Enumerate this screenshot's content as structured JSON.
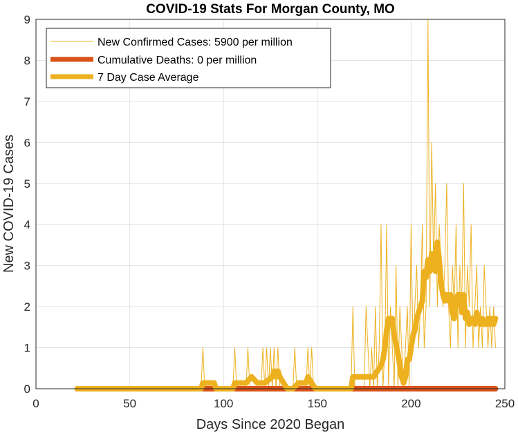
{
  "chart_data": {
    "type": "line",
    "title": "COVID-19 Stats For Morgan County, MO",
    "xlabel": "Days Since 2020 Began",
    "ylabel": "New COVID-19 Cases",
    "xlim": [
      0,
      250
    ],
    "ylim": [
      0,
      9
    ],
    "xticks": [
      0,
      50,
      100,
      150,
      200,
      250
    ],
    "yticks": [
      0,
      1,
      2,
      3,
      4,
      5,
      6,
      7,
      8,
      9
    ],
    "grid": true,
    "legend_position": "top-left",
    "series": [
      {
        "name": "New Confirmed Cases: 5900 per million",
        "color": "#EDB120",
        "style": "thin",
        "x": [
          22,
          88,
          89,
          90,
          91,
          92,
          100,
          105,
          106,
          107,
          112,
          113,
          114,
          120,
          121,
          122,
          123,
          124,
          125,
          126,
          127,
          128,
          129,
          130,
          131,
          137,
          138,
          139,
          144,
          145,
          146,
          147,
          148,
          150,
          168,
          169,
          170,
          175,
          176,
          178,
          179,
          180,
          181,
          182,
          183,
          184,
          185,
          186,
          187,
          188,
          189,
          190,
          191,
          192,
          193,
          194,
          195,
          196,
          197,
          198,
          199,
          200,
          201,
          202,
          203,
          204,
          205,
          206,
          207,
          208,
          209,
          210,
          211,
          212,
          213,
          214,
          215,
          216,
          217,
          218,
          219,
          220,
          221,
          222,
          223,
          224,
          225,
          226,
          227,
          228,
          229,
          230,
          231,
          232,
          233,
          234,
          235,
          236,
          237,
          238,
          239,
          240,
          241,
          242,
          243,
          244,
          245
        ],
        "y": [
          0,
          0,
          1,
          0,
          0,
          0,
          0,
          0,
          1,
          0,
          0,
          1,
          0,
          0,
          1,
          0,
          1,
          0,
          1,
          0,
          1,
          0,
          1,
          0,
          0,
          0,
          1,
          0,
          0,
          1,
          0,
          1,
          0,
          0,
          0,
          2,
          0,
          0,
          2,
          0,
          1,
          0,
          2,
          0,
          1,
          4,
          0,
          1,
          4,
          0,
          2,
          1,
          0,
          3,
          0,
          2,
          1,
          0,
          1,
          2,
          0,
          4,
          1,
          2,
          3,
          1,
          2,
          4,
          1,
          2,
          9,
          2,
          6,
          3,
          5,
          2,
          4,
          3,
          2,
          3,
          5,
          2,
          1,
          3,
          2,
          4,
          1,
          3,
          2,
          5,
          1,
          3,
          2,
          4,
          1,
          2,
          3,
          1,
          2,
          1,
          3,
          2,
          1,
          2,
          1,
          2,
          1
        ]
      },
      {
        "name": "Cumulative Deaths: 0 per million",
        "color": "#D95319",
        "style": "thick",
        "x": [
          22,
          245
        ],
        "y": [
          0,
          0
        ]
      },
      {
        "name": "7 Day Case Average",
        "color": "#EDB120",
        "style": "thick",
        "x": [
          22,
          88,
          89,
          90,
          92,
          95,
          96,
          98,
          105,
          106,
          108,
          112,
          115,
          118,
          120,
          122,
          126,
          127,
          128,
          129,
          130,
          132,
          134,
          137,
          140,
          144,
          145,
          147,
          149,
          151,
          153,
          168,
          169,
          175,
          178,
          180,
          182,
          184,
          185,
          186,
          187,
          188,
          189,
          190,
          191,
          193,
          194,
          195,
          196,
          197,
          198,
          199,
          200,
          201,
          202,
          203,
          204,
          205,
          206,
          207,
          208,
          209,
          210,
          211,
          212,
          213,
          214,
          215,
          216,
          217,
          218,
          219,
          220,
          221,
          222,
          223,
          224,
          225,
          226,
          227,
          228,
          229,
          230,
          231,
          232,
          233,
          234,
          235,
          236,
          237,
          238,
          239,
          240,
          241,
          242,
          243,
          244,
          245
        ],
        "y": [
          0,
          0,
          0.14,
          0.14,
          0.14,
          0.14,
          0,
          0,
          0,
          0.14,
          0.14,
          0.14,
          0.29,
          0.14,
          0.14,
          0.14,
          0.29,
          0.43,
          0.29,
          0.43,
          0.29,
          0.14,
          0,
          0,
          0.14,
          0.14,
          0.29,
          0.14,
          0,
          0,
          0,
          0,
          0.29,
          0.29,
          0.29,
          0.29,
          0.43,
          0.57,
          0.71,
          1.0,
          1.43,
          1.71,
          1.71,
          1.71,
          1.29,
          0.86,
          0.57,
          0.29,
          0.14,
          0.29,
          0.71,
          0.71,
          1.0,
          1.29,
          1.43,
          1.71,
          1.86,
          2.0,
          2.14,
          2.86,
          2.71,
          3.14,
          2.86,
          3.29,
          3.14,
          2.86,
          3.57,
          3.14,
          2.57,
          2.29,
          2.14,
          2.29,
          2.14,
          2.29,
          1.86,
          1.71,
          2.14,
          2.29,
          2.29,
          1.86,
          2.29,
          1.71,
          1.86,
          1.57,
          1.71,
          1.71,
          1.57,
          1.86,
          1.71,
          1.57,
          1.71,
          1.57,
          1.57,
          1.71,
          1.57,
          1.71,
          1.57,
          1.71
        ]
      }
    ]
  }
}
